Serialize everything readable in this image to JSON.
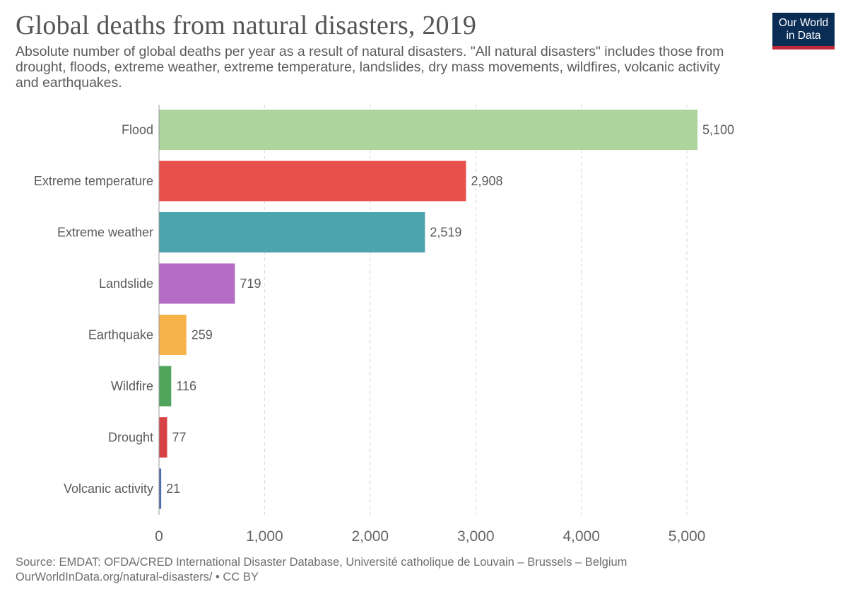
{
  "header": {
    "title": "Global deaths from natural disasters, 2019",
    "subtitle": "Absolute number of global deaths per year as a result of natural disasters. \"All natural disasters\" includes those from drought, floods, extreme weather, extreme temperature, landslides, dry mass movements, wildfires, volcanic activity and earthquakes."
  },
  "logo": {
    "line1": "Our World",
    "line2": "in Data"
  },
  "footer": {
    "source": "Source: EMDAT: OFDA/CRED International Disaster Database, Université catholique de Louvain – Brussels – Belgium",
    "url": "OurWorldInData.org/natural-disasters/ • CC BY"
  },
  "chart_data": {
    "type": "bar",
    "orientation": "horizontal",
    "title": "Global deaths from natural disasters, 2019",
    "xlabel": "",
    "ylabel": "",
    "xlim": [
      0,
      5100
    ],
    "grid": true,
    "xticks": [
      0,
      1000,
      2000,
      3000,
      4000,
      5000
    ],
    "xtick_labels": [
      "0",
      "1,000",
      "2,000",
      "3,000",
      "4,000",
      "5,000"
    ],
    "categories": [
      "Flood",
      "Extreme temperature",
      "Extreme weather",
      "Landslide",
      "Earthquake",
      "Wildfire",
      "Drought",
      "Volcanic activity"
    ],
    "values": [
      5100,
      2908,
      2519,
      719,
      259,
      116,
      77,
      21
    ],
    "value_labels": [
      "5,100",
      "2,908",
      "2,519",
      "719",
      "259",
      "116",
      "77",
      "21"
    ],
    "colors": [
      "#acd49c",
      "#e8504c",
      "#4ca4ac",
      "#b46cc4",
      "#f7b24a",
      "#50a45c",
      "#d84244",
      "#4c6cb4"
    ]
  }
}
